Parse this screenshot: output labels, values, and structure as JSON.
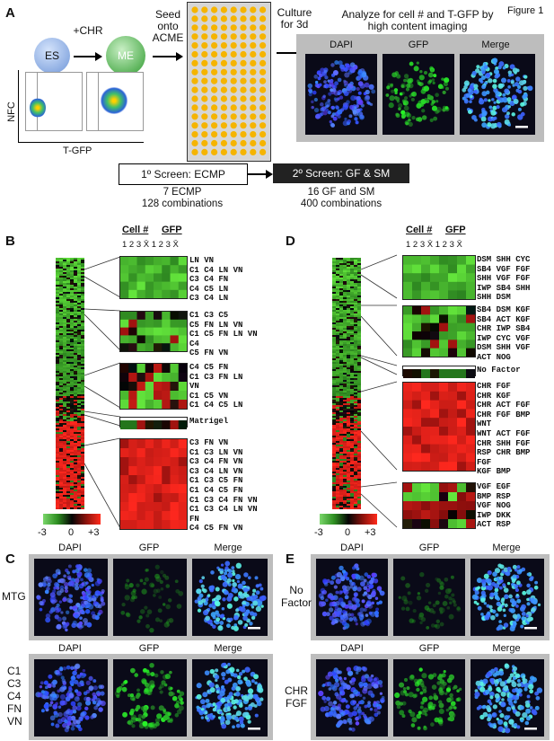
{
  "figure_label": "Figure 1",
  "panels": {
    "A": {
      "letter": "A",
      "es_label": "ES",
      "me_label": "ME",
      "chr_label": "+CHR",
      "seed_label": "Seed\nonto\nACME",
      "culture_label": "Culture\nfor 3d",
      "analyze_label": "Analyze for cell # and T-GFP by\nhigh content imaging",
      "nfc_label": "NFC",
      "tgfp_label": "T-GFP",
      "img_labels": [
        "DAPI",
        "GFP",
        "Merge"
      ],
      "screen1_title": "1º Screen: ECMP",
      "screen1_sub": "7 ECMP\n128 combinations",
      "screen2_title": "2º Screen: GF & SM",
      "screen2_sub": "16 GF and SM\n400 combinations"
    },
    "B": {
      "letter": "B",
      "hdr_cell": "Cell #",
      "hdr_gfp": "GFP",
      "ticks": "1 2 3 X̄ 1 2 3 X̄",
      "group1": "LN VN\nC1 C4 LN VN\nC3 C4 FN\nC4 C5 LN\nC3 C4 LN",
      "group2": "C1 C3 C5\nC5 FN LN VN\nC1 C5 FN LN VN\nC4\nC5 FN VN",
      "group3": "C4 C5 FN\nC1 C3 FN LN\nVN\nC1 C5 VN\nC1 C4 C5 LN",
      "group4": "Matrigel",
      "group5": "C3 FN VN\nC1 C3 LN VN\nC3 C4 FN VN\nC3 C4 LN VN\nC1 C3 C5 FN\nC1 C4 C5 FN\nC1 C3 C4 FN VN\nC1 C3 C4 LN VN\nFN\nC4 C5 FN VN",
      "scale": [
        "-3",
        "0",
        "+3"
      ]
    },
    "C": {
      "letter": "C",
      "img_labels": [
        "DAPI",
        "GFP",
        "Merge"
      ],
      "row1_label": "MTG",
      "row2_label": "C1\nC3\nC4\nFN\nVN"
    },
    "D": {
      "letter": "D",
      "hdr_cell": "Cell #",
      "hdr_gfp": "GFP",
      "ticks": "1 2 3 X̄ 1 2 3 X̄",
      "group1": "DSM SHH CYC\nSB4 VGF FGF\nSHH VGF FGF\nIWP SB4 SHH\nSHH DSM",
      "group2": "SB4 DSM KGF\nSB4 ACT KGF\nCHR IWP SB4\nIWP CYC VGF\nDSM SHH VGF\nACT NOG",
      "group3": "No Factor",
      "group4": "CHR FGF\nCHR KGF\nCHR ACT FGF\nCHR FGF BMP\nWNT\nWNT ACT FGF\nCHR SHH FGF\nRSP CHR BMP\nFGF\nKGF BMP",
      "group5": "VGF EGF\nBMP RSP\nVGF NOG\nIWP DKK\nACT RSP",
      "scale": [
        "-3",
        "0",
        "+3"
      ]
    },
    "E": {
      "letter": "E",
      "img_labels": [
        "DAPI",
        "GFP",
        "Merge"
      ],
      "row1_label": "No\nFactor",
      "row2_label": "CHR\nFGF"
    }
  },
  "colors": {
    "es_circle": "#7fa7e0",
    "me_circle": "#4caf50",
    "well": "#f5b400",
    "plate": "#d9d9d9",
    "heat_green": "#3fae2a",
    "heat_red": "#e3261b",
    "dapi": "#3355ff",
    "gfp": "#33cc33"
  }
}
